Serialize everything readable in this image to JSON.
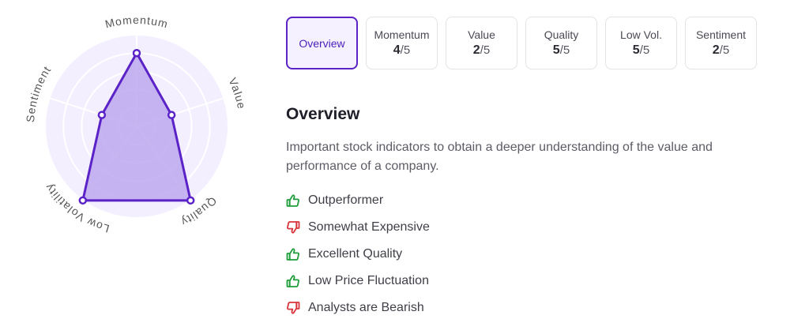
{
  "radar": {
    "max_score": 5,
    "axes": [
      {
        "label": "Momentum",
        "score": 4
      },
      {
        "label": "Value",
        "score": 2
      },
      {
        "label": "Quality",
        "score": 5
      },
      {
        "label": "Low Volatility",
        "score": 5
      },
      {
        "label": "Sentiment",
        "score": 2
      }
    ],
    "colors": {
      "background": "#f3efff",
      "grid": "#ffffff",
      "fill": "#b9a2ee",
      "line": "#5a22c7",
      "label": "#555555"
    }
  },
  "tabs": [
    {
      "name": "Overview",
      "active": true
    },
    {
      "name": "Momentum",
      "score": "4",
      "denominator": "/5"
    },
    {
      "name": "Value",
      "score": "2",
      "denominator": "/5"
    },
    {
      "name": "Quality",
      "score": "5",
      "denominator": "/5"
    },
    {
      "name": "Low Vol.",
      "score": "5",
      "denominator": "/5"
    },
    {
      "name": "Sentiment",
      "score": "2",
      "denominator": "/5"
    }
  ],
  "overview": {
    "title": "Overview",
    "description": "Important stock indicators to obtain a deeper understanding of the value and performance of a company.",
    "factors": [
      {
        "text": "Outperformer",
        "sentiment": "positive",
        "icon": "thumbs-up-icon"
      },
      {
        "text": "Somewhat Expensive",
        "sentiment": "negative",
        "icon": "thumbs-down-icon"
      },
      {
        "text": "Excellent Quality",
        "sentiment": "positive",
        "icon": "thumbs-up-icon"
      },
      {
        "text": "Low Price Fluctuation",
        "sentiment": "positive",
        "icon": "thumbs-up-icon"
      },
      {
        "text": "Analysts are Bearish",
        "sentiment": "negative",
        "icon": "thumbs-down-icon"
      }
    ]
  },
  "colors": {
    "accent": "#5b22c7",
    "positive": "#1f9d3a",
    "negative": "#d9343b"
  }
}
